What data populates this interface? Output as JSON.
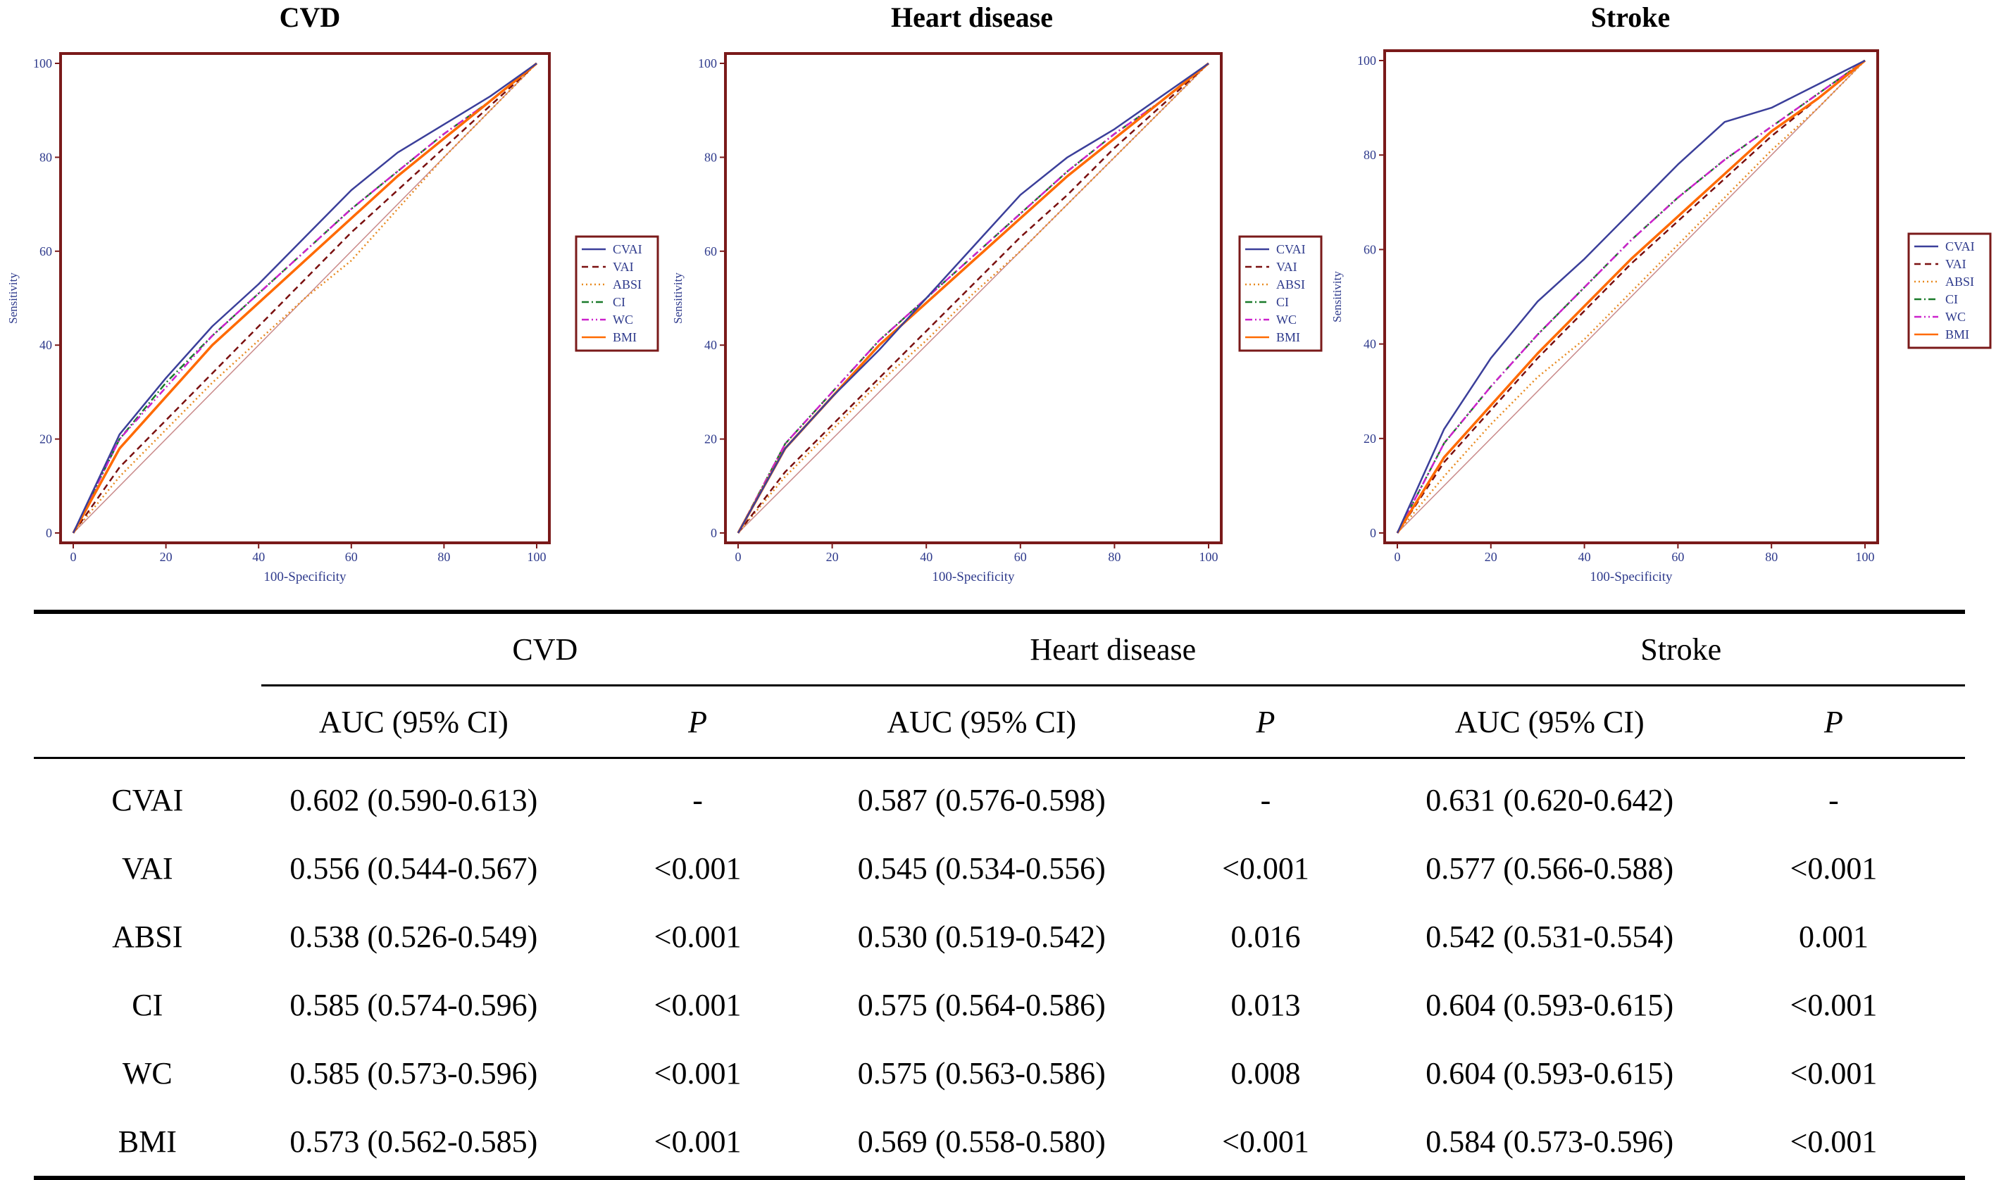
{
  "colors": {
    "frame": "#7a1a1a",
    "axis_text": "#2e3a8c",
    "diagonal": "#c98a8a"
  },
  "series_styles": [
    {
      "name": "CVAI",
      "color": "#3b3f9a",
      "dash": ""
    },
    {
      "name": "VAI",
      "color": "#7a1010",
      "dash": "9,6"
    },
    {
      "name": "ABSI",
      "color": "#e88a20",
      "dash": "2,4"
    },
    {
      "name": "CI",
      "color": "#1a7a2a",
      "dash": "10,4,2,4"
    },
    {
      "name": "WC",
      "color": "#cc22cc",
      "dash": "10,4,2,4,2,4"
    },
    {
      "name": "BMI",
      "color": "#ff6a00",
      "dash": ""
    }
  ],
  "chart_data": [
    {
      "type": "line",
      "title": "CVD",
      "xlabel": "100-Specificity",
      "ylabel": "Sensitivity",
      "xlim": [
        0,
        100
      ],
      "ylim": [
        0,
        100
      ],
      "xticks": [
        0,
        20,
        40,
        60,
        80,
        100
      ],
      "yticks": [
        0,
        20,
        40,
        60,
        80,
        100
      ],
      "legend": "right",
      "x": [
        0,
        10,
        20,
        30,
        40,
        50,
        60,
        70,
        80,
        90,
        100
      ],
      "series": [
        {
          "name": "CVAI",
          "values": [
            0,
            21,
            33,
            44,
            53,
            63,
            73,
            81,
            87,
            93,
            100
          ]
        },
        {
          "name": "VAI",
          "values": [
            0,
            14,
            24,
            34,
            44,
            54,
            64,
            73,
            82,
            91,
            100
          ]
        },
        {
          "name": "ABSI",
          "values": [
            0,
            12,
            22,
            32,
            41,
            50,
            58,
            69,
            80,
            90,
            100
          ]
        },
        {
          "name": "CI",
          "values": [
            0,
            20,
            32,
            42,
            51,
            60,
            69,
            77,
            85,
            92,
            100
          ]
        },
        {
          "name": "WC",
          "values": [
            0,
            20,
            31,
            42,
            51,
            60,
            69,
            77,
            85,
            92,
            100
          ]
        },
        {
          "name": "BMI",
          "values": [
            0,
            18,
            29,
            40,
            49,
            58,
            67,
            76,
            84,
            92,
            100
          ]
        }
      ]
    },
    {
      "type": "line",
      "title": "Heart disease",
      "xlabel": "100-Specificity",
      "ylabel": "Sensitivity",
      "xlim": [
        0,
        100
      ],
      "ylim": [
        0,
        100
      ],
      "xticks": [
        0,
        20,
        40,
        60,
        80,
        100
      ],
      "yticks": [
        0,
        20,
        40,
        60,
        80,
        100
      ],
      "legend": "right",
      "x": [
        0,
        10,
        20,
        30,
        40,
        50,
        60,
        70,
        80,
        90,
        100
      ],
      "series": [
        {
          "name": "CVAI",
          "values": [
            0,
            18,
            29,
            39,
            50,
            61,
            72,
            80,
            86,
            93,
            100
          ]
        },
        {
          "name": "VAI",
          "values": [
            0,
            13,
            23,
            33,
            43,
            53,
            63,
            72,
            82,
            91,
            100
          ]
        },
        {
          "name": "ABSI",
          "values": [
            0,
            12,
            22,
            32,
            41,
            51,
            60,
            70,
            80,
            90,
            100
          ]
        },
        {
          "name": "CI",
          "values": [
            0,
            19,
            30,
            41,
            50,
            59,
            68,
            77,
            85,
            92,
            100
          ]
        },
        {
          "name": "WC",
          "values": [
            0,
            19,
            30,
            41,
            50,
            59,
            68,
            77,
            85,
            92,
            100
          ]
        },
        {
          "name": "BMI",
          "values": [
            0,
            18,
            29,
            40,
            49,
            58,
            67,
            76,
            84,
            92,
            100
          ]
        }
      ]
    },
    {
      "type": "line",
      "title": "Stroke",
      "xlabel": "100-Specificity",
      "ylabel": "Sensitivity",
      "xlim": [
        0,
        100
      ],
      "ylim": [
        0,
        100
      ],
      "xticks": [
        0,
        20,
        40,
        60,
        80,
        100
      ],
      "yticks": [
        0,
        20,
        40,
        60,
        80,
        100
      ],
      "legend": "right",
      "x": [
        0,
        10,
        20,
        30,
        40,
        50,
        60,
        70,
        80,
        90,
        100
      ],
      "series": [
        {
          "name": "CVAI",
          "values": [
            0,
            22,
            37,
            49,
            58,
            68,
            78,
            87,
            90,
            95,
            100
          ]
        },
        {
          "name": "VAI",
          "values": [
            0,
            15,
            26,
            37,
            47,
            57,
            66,
            75,
            84,
            92,
            100
          ]
        },
        {
          "name": "ABSI",
          "values": [
            0,
            12,
            23,
            33,
            41,
            51,
            61,
            71,
            81,
            90,
            100
          ]
        },
        {
          "name": "CI",
          "values": [
            0,
            19,
            31,
            42,
            52,
            62,
            71,
            79,
            86,
            93,
            100
          ]
        },
        {
          "name": "WC",
          "values": [
            0,
            19,
            31,
            42,
            52,
            62,
            71,
            79,
            86,
            93,
            100
          ]
        },
        {
          "name": "BMI",
          "values": [
            0,
            16,
            27,
            38,
            48,
            58,
            67,
            76,
            85,
            92,
            100
          ]
        }
      ]
    }
  ],
  "table": {
    "groups": [
      "CVD",
      "Heart disease",
      "Stroke"
    ],
    "sub_headers": [
      "AUC (95% CI)",
      "P"
    ],
    "rows": [
      {
        "label": "CVAI",
        "cells": [
          "0.602 (0.590-0.613)",
          "-",
          "0.587 (0.576-0.598)",
          "-",
          "0.631 (0.620-0.642)",
          "-"
        ]
      },
      {
        "label": "VAI",
        "cells": [
          "0.556 (0.544-0.567)",
          "<0.001",
          "0.545 (0.534-0.556)",
          "<0.001",
          "0.577 (0.566-0.588)",
          "<0.001"
        ]
      },
      {
        "label": "ABSI",
        "cells": [
          "0.538 (0.526-0.549)",
          "<0.001",
          "0.530 (0.519-0.542)",
          "0.016",
          "0.542 (0.531-0.554)",
          "0.001"
        ]
      },
      {
        "label": "CI",
        "cells": [
          "0.585 (0.574-0.596)",
          "<0.001",
          "0.575 (0.564-0.586)",
          "0.013",
          "0.604 (0.593-0.615)",
          "<0.001"
        ]
      },
      {
        "label": "WC",
        "cells": [
          "0.585 (0.573-0.596)",
          "<0.001",
          "0.575 (0.563-0.586)",
          "0.008",
          "0.604 (0.593-0.615)",
          "<0.001"
        ]
      },
      {
        "label": "BMI",
        "cells": [
          "0.573 (0.562-0.585)",
          "<0.001",
          "0.569 (0.558-0.580)",
          "<0.001",
          "0.584 (0.573-0.596)",
          "<0.001"
        ]
      }
    ]
  }
}
